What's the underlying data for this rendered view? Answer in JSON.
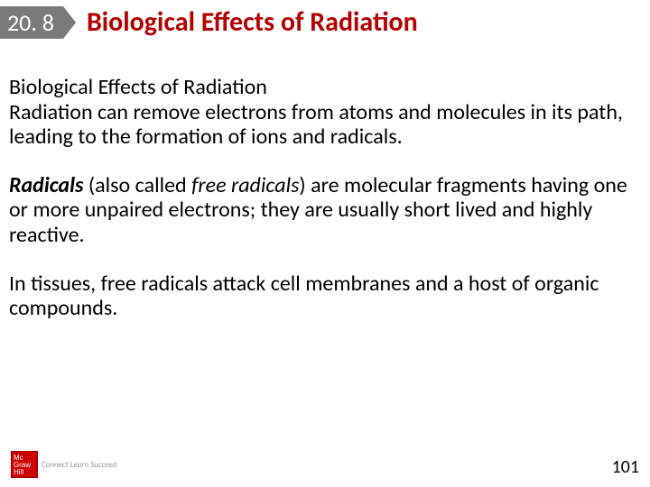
{
  "header": {
    "section_number": "20. 8",
    "section_title": "Biological Effects of Radiation"
  },
  "content": {
    "subheading": "Biological Effects of Radiation",
    "para1": "Radiation can remove electrons from atoms and molecules in its path, leading to the formation of ions and radicals.",
    "radicals_bold": "Radicals",
    "para2_mid1": " (also called ",
    "free_radicals_italic": "free radicals",
    "para2_mid2": ") are molecular fragments having one or more unpaired electrons; they are usually short lived and highly reactive.",
    "para3": "In tissues, free radicals attack cell membranes and a host of organic compounds."
  },
  "footer": {
    "logo_mark_lines": "Mc\nGraw\nHill",
    "logo_tag": "Connect\nLearn\nSucceed",
    "page_number": "101"
  },
  "colors": {
    "section_bg": "#7a7a7a",
    "title_color": "#b30000",
    "body_text": "#000000",
    "background": "#ffffff",
    "logo_bg": "#cc0000"
  },
  "typography": {
    "title_fontsize": 30,
    "body_fontsize": 24,
    "section_number_fontsize": 26,
    "page_number_fontsize": 20
  }
}
